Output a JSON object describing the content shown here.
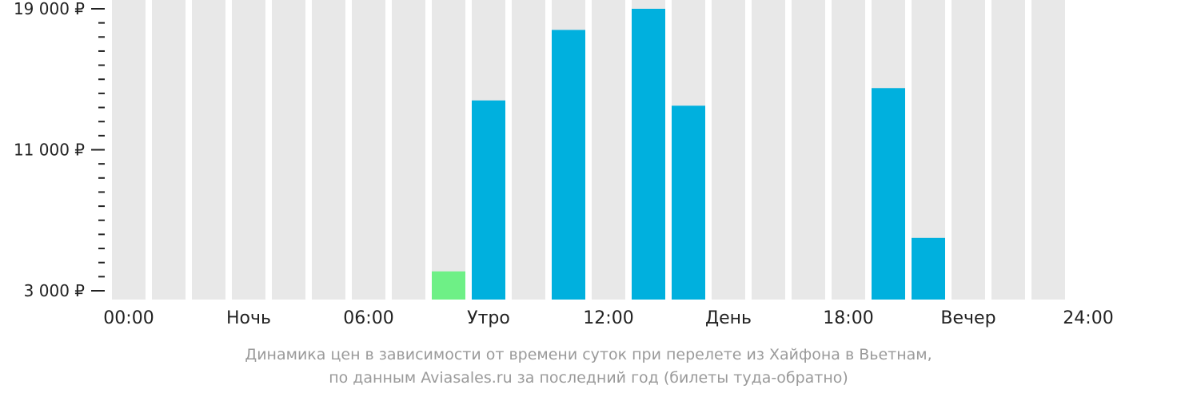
{
  "chart_data": {
    "type": "bar",
    "ylim": [
      3000,
      19000
    ],
    "y_ticks": [
      {
        "value": 19000,
        "label": "19 000 ₽"
      },
      {
        "value": 11000,
        "label": "11 000 ₽"
      },
      {
        "value": 3000,
        "label": "3 000 ₽"
      }
    ],
    "y_minor_ticks": [
      18200,
      17400,
      16600,
      15800,
      15000,
      14200,
      13400,
      12600,
      11800,
      10200,
      9400,
      8600,
      7800,
      7000,
      6200,
      5400,
      4600,
      3800
    ],
    "x_labels": [
      "00:00",
      "Ночь",
      "06:00",
      "Утро",
      "12:00",
      "День",
      "18:00",
      "Вечер",
      "24:00"
    ],
    "values": [
      null,
      null,
      null,
      null,
      null,
      null,
      null,
      null,
      4100,
      13800,
      null,
      17800,
      null,
      19000,
      13500,
      null,
      null,
      null,
      null,
      14500,
      6000,
      null,
      null,
      null
    ],
    "highlight_index": 8,
    "colors": {
      "background_bar": "#e8e8e8",
      "bar": "#00b0de",
      "cheapest_bar": "#6ef086",
      "axis": "#222222"
    }
  },
  "caption": {
    "line1": "Динамика цен в зависимости от времени суток при перелете из Хайфона в Вьетнам,",
    "line2": "по данным Aviasales.ru за последний год (билеты туда-обратно)"
  }
}
